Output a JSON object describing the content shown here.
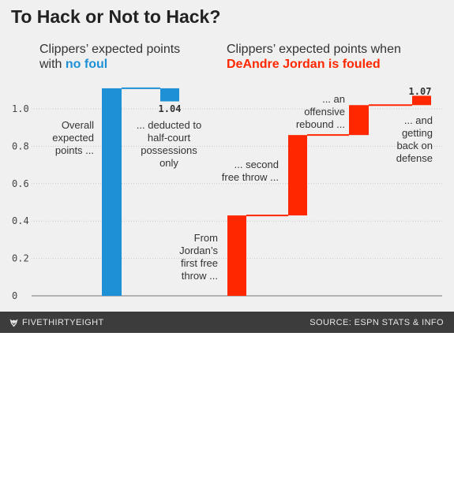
{
  "header": {
    "title": "To Hack or Not to Hack?",
    "left_subtitle_line1": "Clippers’ expected points",
    "left_subtitle_prefix": "with ",
    "left_subtitle_highlight": "no foul",
    "right_subtitle_line1": "Clippers’ expected points when",
    "right_subtitle_highlight": "DeAndre Jordan is fouled"
  },
  "colors": {
    "blue": "#1e90d6",
    "red": "#ff2700",
    "background": "#f0f0f0",
    "footer": "#3c3c3c"
  },
  "footer": {
    "brand": "FIVETHIRTYEIGHT",
    "brand_icon": "fivethirtyeight-fox-icon",
    "source": "SOURCE: ESPN STATS & INFO"
  },
  "chart_data": {
    "type": "bar",
    "subtype": "waterfall",
    "ylim": [
      0,
      1.1
    ],
    "yticks": [
      "0",
      "0.2",
      "0.4",
      "0.6",
      "0.8",
      "1.0"
    ],
    "grid": true,
    "series": [
      {
        "name": "no foul",
        "color": "#1e90d6",
        "steps": [
          {
            "label": [
              "Overall",
              "expected",
              "points ..."
            ],
            "start": 0,
            "end": 1.11
          },
          {
            "label": [
              "... deducted to",
              "half-court",
              "possessions",
              "only"
            ],
            "start": 1.11,
            "end": 1.04,
            "value_label": "1.04"
          }
        ]
      },
      {
        "name": "DeAndre Jordan is fouled",
        "color": "#ff2700",
        "steps": [
          {
            "label": [
              "From",
              "Jordan’s",
              "first free",
              "throw ..."
            ],
            "start": 0,
            "end": 0.43
          },
          {
            "label": [
              "... second",
              "free throw ..."
            ],
            "start": 0.43,
            "end": 0.86
          },
          {
            "label": [
              "... an",
              "offensive",
              "rebound ..."
            ],
            "start": 0.86,
            "end": 1.02
          },
          {
            "label": [
              "... and",
              "getting",
              "back on",
              "defense"
            ],
            "start": 1.02,
            "end": 1.07,
            "value_label": "1.07"
          }
        ]
      }
    ]
  }
}
